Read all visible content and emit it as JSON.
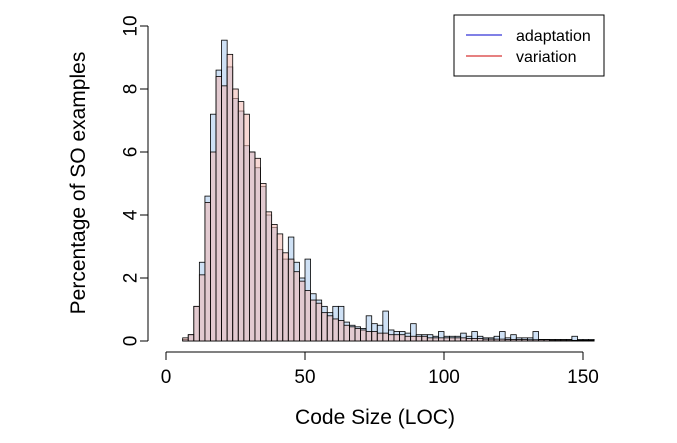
{
  "chart_data": {
    "type": "bar",
    "xlabel": "Code Size (LOC)",
    "ylabel": "Percentage of SO examples",
    "xlim": [
      0,
      155
    ],
    "ylim": [
      0,
      10
    ],
    "xticks": [
      0,
      50,
      100,
      150
    ],
    "yticks": [
      0,
      2,
      4,
      6,
      8,
      10
    ],
    "bin_width": 2,
    "grid": false,
    "legend": {
      "position": "top-right"
    },
    "series": [
      {
        "name": "adaptation",
        "line_color": "#0000cc",
        "fill_color": "#a8c8ec",
        "fill_opacity": 0.55,
        "bins": [
          {
            "x": 6,
            "y": 0.05
          },
          {
            "x": 8,
            "y": 0.2
          },
          {
            "x": 10,
            "y": 1.1
          },
          {
            "x": 12,
            "y": 2.5
          },
          {
            "x": 14,
            "y": 4.6
          },
          {
            "x": 16,
            "y": 7.2
          },
          {
            "x": 18,
            "y": 8.6
          },
          {
            "x": 20,
            "y": 9.55
          },
          {
            "x": 22,
            "y": 8.7
          },
          {
            "x": 24,
            "y": 7.7
          },
          {
            "x": 26,
            "y": 7.3
          },
          {
            "x": 28,
            "y": 6.2
          },
          {
            "x": 30,
            "y": 6.0
          },
          {
            "x": 32,
            "y": 5.5
          },
          {
            "x": 34,
            "y": 4.9
          },
          {
            "x": 36,
            "y": 4.0
          },
          {
            "x": 38,
            "y": 3.6
          },
          {
            "x": 40,
            "y": 2.9
          },
          {
            "x": 42,
            "y": 2.6
          },
          {
            "x": 44,
            "y": 3.3
          },
          {
            "x": 46,
            "y": 2.5
          },
          {
            "x": 48,
            "y": 2.0
          },
          {
            "x": 50,
            "y": 2.6
          },
          {
            "x": 52,
            "y": 1.5
          },
          {
            "x": 54,
            "y": 1.3
          },
          {
            "x": 56,
            "y": 1.1
          },
          {
            "x": 58,
            "y": 0.9
          },
          {
            "x": 60,
            "y": 1.1
          },
          {
            "x": 62,
            "y": 1.1
          },
          {
            "x": 64,
            "y": 0.6
          },
          {
            "x": 66,
            "y": 0.5
          },
          {
            "x": 68,
            "y": 0.45
          },
          {
            "x": 70,
            "y": 0.4
          },
          {
            "x": 72,
            "y": 0.8
          },
          {
            "x": 74,
            "y": 0.55
          },
          {
            "x": 76,
            "y": 0.5
          },
          {
            "x": 78,
            "y": 0.95
          },
          {
            "x": 80,
            "y": 0.35
          },
          {
            "x": 82,
            "y": 0.3
          },
          {
            "x": 84,
            "y": 0.3
          },
          {
            "x": 86,
            "y": 0.25
          },
          {
            "x": 88,
            "y": 0.55
          },
          {
            "x": 90,
            "y": 0.2
          },
          {
            "x": 92,
            "y": 0.2
          },
          {
            "x": 94,
            "y": 0.2
          },
          {
            "x": 96,
            "y": 0.15
          },
          {
            "x": 98,
            "y": 0.3
          },
          {
            "x": 100,
            "y": 0.15
          },
          {
            "x": 102,
            "y": 0.15
          },
          {
            "x": 104,
            "y": 0.15
          },
          {
            "x": 106,
            "y": 0.25
          },
          {
            "x": 108,
            "y": 0.15
          },
          {
            "x": 110,
            "y": 0.3
          },
          {
            "x": 112,
            "y": 0.15
          },
          {
            "x": 114,
            "y": 0.1
          },
          {
            "x": 116,
            "y": 0.1
          },
          {
            "x": 118,
            "y": 0.15
          },
          {
            "x": 120,
            "y": 0.3
          },
          {
            "x": 122,
            "y": 0.1
          },
          {
            "x": 124,
            "y": 0.2
          },
          {
            "x": 126,
            "y": 0.1
          },
          {
            "x": 128,
            "y": 0.1
          },
          {
            "x": 130,
            "y": 0.1
          },
          {
            "x": 132,
            "y": 0.3
          },
          {
            "x": 134,
            "y": 0.05
          },
          {
            "x": 136,
            "y": 0.05
          },
          {
            "x": 138,
            "y": 0.05
          },
          {
            "x": 140,
            "y": 0.05
          },
          {
            "x": 142,
            "y": 0.05
          },
          {
            "x": 144,
            "y": 0.05
          },
          {
            "x": 146,
            "y": 0.15
          },
          {
            "x": 148,
            "y": 0.05
          },
          {
            "x": 150,
            "y": 0.05
          },
          {
            "x": 152,
            "y": 0.05
          }
        ]
      },
      {
        "name": "variation",
        "line_color": "#cc0000",
        "fill_color": "#f2b8b0",
        "fill_opacity": 0.55,
        "bins": [
          {
            "x": 6,
            "y": 0.1
          },
          {
            "x": 8,
            "y": 0.2
          },
          {
            "x": 10,
            "y": 1.1
          },
          {
            "x": 12,
            "y": 2.1
          },
          {
            "x": 14,
            "y": 4.4
          },
          {
            "x": 16,
            "y": 6.0
          },
          {
            "x": 18,
            "y": 8.4
          },
          {
            "x": 20,
            "y": 8.1
          },
          {
            "x": 22,
            "y": 9.1
          },
          {
            "x": 24,
            "y": 8.0
          },
          {
            "x": 26,
            "y": 7.6
          },
          {
            "x": 28,
            "y": 7.2
          },
          {
            "x": 30,
            "y": 6.0
          },
          {
            "x": 32,
            "y": 5.8
          },
          {
            "x": 34,
            "y": 5.0
          },
          {
            "x": 36,
            "y": 4.1
          },
          {
            "x": 38,
            "y": 3.7
          },
          {
            "x": 40,
            "y": 3.4
          },
          {
            "x": 42,
            "y": 2.8
          },
          {
            "x": 44,
            "y": 2.6
          },
          {
            "x": 46,
            "y": 2.2
          },
          {
            "x": 48,
            "y": 1.9
          },
          {
            "x": 50,
            "y": 1.6
          },
          {
            "x": 52,
            "y": 1.3
          },
          {
            "x": 54,
            "y": 1.2
          },
          {
            "x": 56,
            "y": 0.9
          },
          {
            "x": 58,
            "y": 0.8
          },
          {
            "x": 60,
            "y": 0.7
          },
          {
            "x": 62,
            "y": 0.65
          },
          {
            "x": 64,
            "y": 0.5
          },
          {
            "x": 66,
            "y": 0.45
          },
          {
            "x": 68,
            "y": 0.4
          },
          {
            "x": 70,
            "y": 0.35
          },
          {
            "x": 72,
            "y": 0.3
          },
          {
            "x": 74,
            "y": 0.3
          },
          {
            "x": 76,
            "y": 0.25
          },
          {
            "x": 78,
            "y": 0.25
          },
          {
            "x": 80,
            "y": 0.2
          },
          {
            "x": 82,
            "y": 0.2
          },
          {
            "x": 84,
            "y": 0.2
          },
          {
            "x": 86,
            "y": 0.15
          },
          {
            "x": 88,
            "y": 0.15
          },
          {
            "x": 90,
            "y": 0.15
          },
          {
            "x": 92,
            "y": 0.15
          },
          {
            "x": 94,
            "y": 0.1
          },
          {
            "x": 96,
            "y": 0.1
          },
          {
            "x": 98,
            "y": 0.1
          },
          {
            "x": 100,
            "y": 0.1
          },
          {
            "x": 102,
            "y": 0.1
          },
          {
            "x": 104,
            "y": 0.1
          },
          {
            "x": 106,
            "y": 0.1
          },
          {
            "x": 108,
            "y": 0.08
          },
          {
            "x": 110,
            "y": 0.08
          },
          {
            "x": 112,
            "y": 0.08
          },
          {
            "x": 114,
            "y": 0.06
          },
          {
            "x": 116,
            "y": 0.06
          },
          {
            "x": 118,
            "y": 0.06
          },
          {
            "x": 120,
            "y": 0.06
          },
          {
            "x": 122,
            "y": 0.05
          },
          {
            "x": 124,
            "y": 0.05
          },
          {
            "x": 126,
            "y": 0.05
          },
          {
            "x": 128,
            "y": 0.05
          },
          {
            "x": 130,
            "y": 0.04
          },
          {
            "x": 132,
            "y": 0.04
          },
          {
            "x": 134,
            "y": 0.04
          },
          {
            "x": 136,
            "y": 0.04
          },
          {
            "x": 138,
            "y": 0.03
          },
          {
            "x": 140,
            "y": 0.03
          },
          {
            "x": 142,
            "y": 0.03
          },
          {
            "x": 144,
            "y": 0.03
          },
          {
            "x": 146,
            "y": 0.02
          },
          {
            "x": 148,
            "y": 0.02
          },
          {
            "x": 150,
            "y": 0.02
          },
          {
            "x": 152,
            "y": 0.02
          }
        ]
      }
    ]
  }
}
